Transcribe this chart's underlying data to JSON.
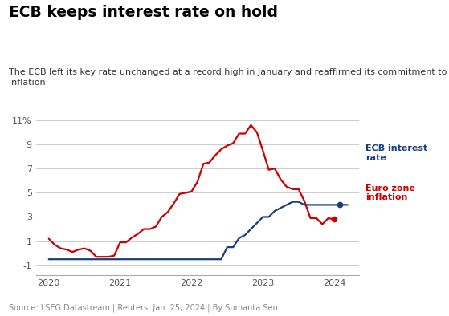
{
  "title": "ECB keeps interest rate on hold",
  "subtitle": "The ECB left its key rate unchanged at a record high in January and reaffirmed its commitment to fighting\ninflation.",
  "source": "Source: LSEG Datastream | Reuters, Jan. 25, 2024 | By Sumanta Sen",
  "background_color": "#ffffff",
  "title_color": "#000000",
  "subtitle_color": "#333333",
  "source_color": "#888888",
  "ecb_color": "#1a3f7a",
  "inflation_color": "#cc0000",
  "ylim": [
    -1.8,
    11.8
  ],
  "yticks": [
    -1,
    1,
    3,
    5,
    7,
    9,
    11
  ],
  "ytick_labels": [
    "-1",
    "1",
    "3",
    "5",
    "7",
    "9",
    "11%"
  ],
  "xlim_left": 2019.82,
  "xlim_right": 2024.35,
  "ecb_rate_x": [
    2020.0,
    2020.083,
    2020.167,
    2020.25,
    2020.333,
    2020.417,
    2020.5,
    2020.583,
    2020.667,
    2020.75,
    2020.833,
    2020.917,
    2021.0,
    2021.083,
    2021.167,
    2021.25,
    2021.333,
    2021.417,
    2021.5,
    2021.583,
    2021.667,
    2021.75,
    2021.833,
    2021.917,
    2022.0,
    2022.083,
    2022.167,
    2022.25,
    2022.333,
    2022.417,
    2022.5,
    2022.583,
    2022.667,
    2022.75,
    2022.833,
    2022.917,
    2023.0,
    2023.083,
    2023.167,
    2023.25,
    2023.333,
    2023.417,
    2023.5,
    2023.583,
    2023.667,
    2023.75,
    2023.833,
    2023.917,
    2024.0,
    2024.083
  ],
  "ecb_rate_y": [
    -0.5,
    -0.5,
    -0.5,
    -0.5,
    -0.5,
    -0.5,
    -0.5,
    -0.5,
    -0.5,
    -0.5,
    -0.5,
    -0.5,
    -0.5,
    -0.5,
    -0.5,
    -0.5,
    -0.5,
    -0.5,
    -0.5,
    -0.5,
    -0.5,
    -0.5,
    -0.5,
    -0.5,
    -0.5,
    -0.5,
    -0.5,
    -0.5,
    -0.5,
    -0.5,
    0.5,
    0.5,
    1.25,
    1.5,
    2.0,
    2.5,
    3.0,
    3.0,
    3.5,
    3.75,
    4.0,
    4.25,
    4.25,
    4.0,
    4.0,
    4.0,
    4.0,
    4.0,
    4.0,
    4.0
  ],
  "euro_inflation_x": [
    2020.0,
    2020.083,
    2020.167,
    2020.25,
    2020.333,
    2020.417,
    2020.5,
    2020.583,
    2020.667,
    2020.75,
    2020.833,
    2020.917,
    2021.0,
    2021.083,
    2021.167,
    2021.25,
    2021.333,
    2021.417,
    2021.5,
    2021.583,
    2021.667,
    2021.75,
    2021.833,
    2021.917,
    2022.0,
    2022.083,
    2022.167,
    2022.25,
    2022.333,
    2022.417,
    2022.5,
    2022.583,
    2022.667,
    2022.75,
    2022.833,
    2022.917,
    2023.0,
    2023.083,
    2023.167,
    2023.25,
    2023.333,
    2023.417,
    2023.5,
    2023.583,
    2023.667,
    2023.75,
    2023.833,
    2023.917,
    2024.0
  ],
  "euro_inflation_y": [
    1.2,
    0.7,
    0.4,
    0.3,
    0.1,
    0.3,
    0.4,
    0.2,
    -0.3,
    -0.3,
    -0.3,
    -0.2,
    0.9,
    0.9,
    1.3,
    1.6,
    2.0,
    2.0,
    2.2,
    3.0,
    3.4,
    4.1,
    4.9,
    5.0,
    5.1,
    5.9,
    7.4,
    7.5,
    8.1,
    8.6,
    8.9,
    9.1,
    9.9,
    9.9,
    10.6,
    10.0,
    8.5,
    6.9,
    7.0,
    6.1,
    5.5,
    5.3,
    5.3,
    4.3,
    2.9,
    2.9,
    2.4,
    2.9,
    2.8
  ],
  "legend_ecb_label": "ECB interest\nrate",
  "legend_inflation_label": "Euro zone\ninflation"
}
